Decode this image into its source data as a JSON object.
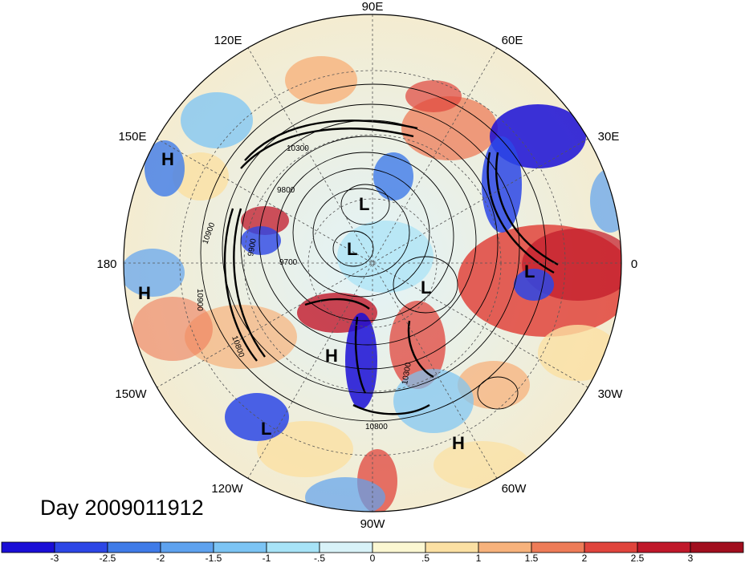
{
  "map": {
    "projection": "north-polar-stereographic",
    "longitude_labels": [
      "90E",
      "60E",
      "30E",
      "0",
      "30W",
      "60W",
      "90W",
      "120W",
      "150W",
      "180",
      "150E",
      "120E"
    ],
    "pressure_systems": [
      {
        "label": "H"
      },
      {
        "label": "H"
      },
      {
        "label": "H"
      },
      {
        "label": "H"
      },
      {
        "label": "L"
      },
      {
        "label": "L"
      },
      {
        "label": "L"
      },
      {
        "label": "L"
      },
      {
        "label": "L"
      }
    ],
    "contour_labels": [
      "10300",
      "9800",
      "9700",
      "10900",
      "10900",
      "10800",
      "10800",
      "10300",
      "9900"
    ]
  },
  "timestamp": "Day 2009011912",
  "colorbar": {
    "ticks": [
      "-3",
      "-2.5",
      "-2",
      "-1.5",
      "-1",
      "-.5",
      "0",
      ".5",
      "1",
      "1.5",
      "2",
      "2.5",
      "3"
    ],
    "colors": [
      "#1a0ed6",
      "#2c46e6",
      "#3f7be8",
      "#5ea2ef",
      "#7cc4f4",
      "#a7e3f7",
      "#d8f2f8",
      "#fbf7d2",
      "#fbe0a3",
      "#f7b27c",
      "#ee7c58",
      "#e0443c",
      "#c0182a",
      "#a10e1e"
    ]
  }
}
